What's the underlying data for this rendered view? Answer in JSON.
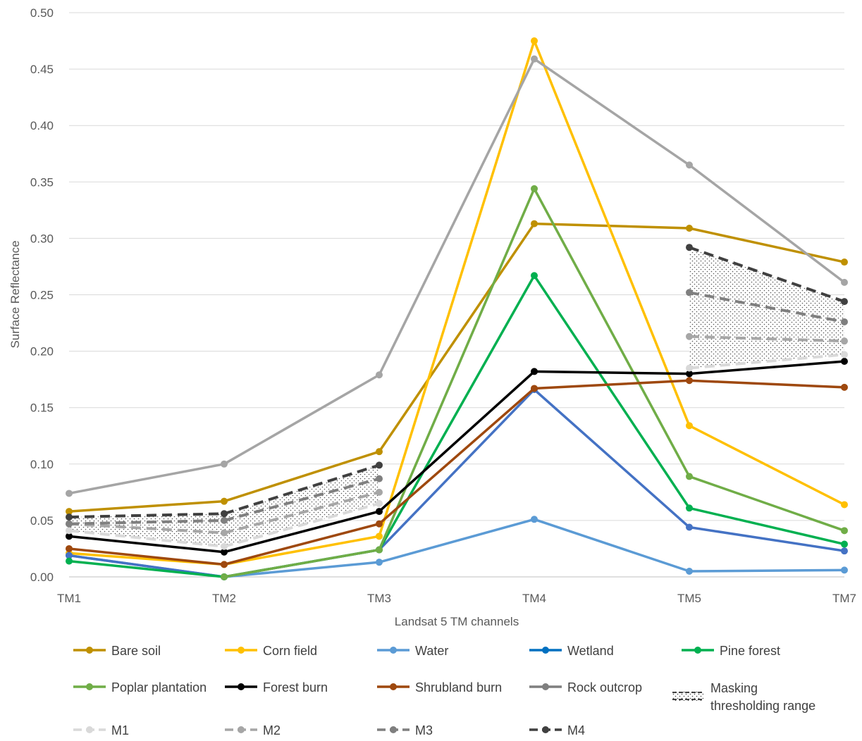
{
  "chart_data": {
    "type": "line",
    "xlabel": "Landsat 5 TM channels",
    "ylabel": "Surface Reflectance",
    "categories": [
      "TM1",
      "TM2",
      "TM3",
      "TM4",
      "TM5",
      "TM7"
    ],
    "ylim": [
      0,
      0.5
    ],
    "yticks": [
      "0.00",
      "0.05",
      "0.10",
      "0.15",
      "0.20",
      "0.25",
      "0.30",
      "0.35",
      "0.40",
      "0.45",
      "0.50"
    ],
    "grid": "horizontal",
    "legend_position": "bottom",
    "series": [
      {
        "name": "Bare soil",
        "color": "#bf9000",
        "values": [
          0.058,
          0.067,
          0.111,
          0.313,
          0.309,
          0.279
        ]
      },
      {
        "name": "Corn field",
        "color": "#ffc000",
        "values": [
          0.021,
          0.011,
          0.036,
          0.475,
          0.134,
          0.064
        ]
      },
      {
        "name": "Water",
        "color": "#5b9bd5",
        "values": [
          0.019,
          0.0,
          0.013,
          0.051,
          0.005,
          0.006
        ]
      },
      {
        "name": "Wetland",
        "color": "#4472c4",
        "legend_color": "#0070c0",
        "values": [
          0.019,
          0.0,
          0.024,
          0.166,
          0.044,
          0.023
        ]
      },
      {
        "name": "Pine forest",
        "color": "#00b050",
        "values": [
          0.014,
          0.0,
          0.024,
          0.267,
          0.061,
          0.029
        ]
      },
      {
        "name": "Poplar plantation",
        "color": "#70ad47",
        "values": [
          null,
          0.0,
          0.024,
          0.344,
          0.089,
          0.041
        ]
      },
      {
        "name": "Forest burn",
        "color": "#000000",
        "values": [
          0.036,
          0.022,
          0.058,
          0.182,
          0.18,
          0.191
        ]
      },
      {
        "name": "Shrubland burn",
        "color": "#9e480e",
        "values": [
          0.025,
          0.011,
          0.047,
          0.167,
          0.174,
          0.168
        ]
      },
      {
        "name": "Rock outcrop",
        "color": "#a5a5a5",
        "legend_color": "#7f7f7f",
        "values": [
          0.074,
          0.1,
          0.179,
          0.459,
          0.365,
          0.261
        ]
      },
      {
        "name": "M1",
        "color": "#d9d9d9",
        "dashed": true,
        "values": [
          0.041,
          0.027,
          0.065,
          null,
          0.185,
          0.197
        ]
      },
      {
        "name": "M2",
        "color": "#a6a6a6",
        "dashed": true,
        "values": [
          0.047,
          0.039,
          0.075,
          null,
          0.213,
          0.209
        ]
      },
      {
        "name": "M3",
        "color": "#7f7f7f",
        "dashed": true,
        "values": [
          0.047,
          0.05,
          0.087,
          null,
          0.252,
          0.226
        ]
      },
      {
        "name": "M4",
        "color": "#404040",
        "dashed": true,
        "values": [
          0.053,
          0.056,
          0.099,
          null,
          0.292,
          0.244
        ]
      }
    ],
    "shaded_regions": [
      {
        "name": "Masking thresholding range",
        "segments": [
          [
            0,
            2
          ],
          [
            4,
            5
          ]
        ]
      }
    ]
  },
  "legend": {
    "masking_label_line1": "Masking",
    "masking_label_line2": "thresholding range"
  }
}
